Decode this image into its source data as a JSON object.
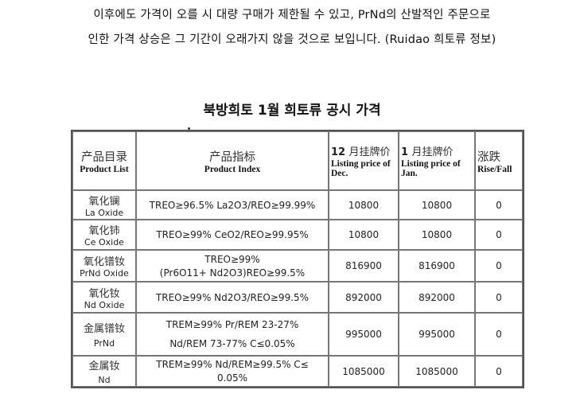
{
  "paragraph": {
    "line1": "이후에도 가격이 오를 시 대량 구매가 제한될 수 있고, PrNd의 산발적인 주문으로",
    "line2": "인한 가격 상승은 그 기간이 오래가지 않을 것으로 보입니다. (Ruidao 희토류 정보)"
  },
  "table_title": "북방희토 1월 희토류 공시 가격",
  "table": {
    "header": {
      "col1_zh": "产品目录",
      "col1_en": "Product List",
      "col2_zh": "产品指标",
      "col2_en": "Product Index",
      "col3_num": "12",
      "col3_zh": "月挂牌价",
      "col3_en": "Listing price of Dec.",
      "col4_num": "1",
      "col4_zh": "月挂牌价",
      "col4_en": "Listing price of Jan.",
      "col5_zh": "涨跌",
      "col5_en": "Rise/Fall"
    },
    "rows": [
      {
        "name_zh": "氧化镧",
        "name_en": "La Oxide",
        "index_l1": "TREO≥96.5%  La2O3/REO≥99.99%",
        "index_l2": "",
        "dec": "10800",
        "jan": "10800",
        "change": "0"
      },
      {
        "name_zh": "氧化铈",
        "name_en": "Ce Oxide",
        "index_l1": "TREO≥99%   CeO2/REO≥99.95%",
        "index_l2": "",
        "dec": "10800",
        "jan": "10800",
        "change": "0"
      },
      {
        "name_zh": "氧化镨钕",
        "name_en": "PrNd Oxide",
        "index_l1": "TREO≥99%",
        "index_l2": "(Pr6O11+ Nd2O3)REO≥99.5%",
        "dec": "816900",
        "jan": "816900",
        "change": "0"
      },
      {
        "name_zh": "氧化钕",
        "name_en": "Nd Oxide",
        "index_l1": "TREO≥99%  Nd2O3/REO≥99.5%",
        "index_l2": "",
        "dec": "892000",
        "jan": "892000",
        "change": "0"
      },
      {
        "name_zh": "金属镨钕",
        "name_en": "PrNd",
        "index_l1": "TREM≥99%  Pr/REM 23-27%",
        "index_l2": "Nd/REM 73-77%   C≤0.05%",
        "dec": "995000",
        "jan": "995000",
        "change": "0"
      },
      {
        "name_zh": "金属钕",
        "name_en": "Nd",
        "index_l1": "TREM≥99%  Nd/REM≥99.5%  C≤",
        "index_l2": "0.05%",
        "dec": "1085000",
        "jan": "1085000",
        "change": "0"
      }
    ]
  }
}
